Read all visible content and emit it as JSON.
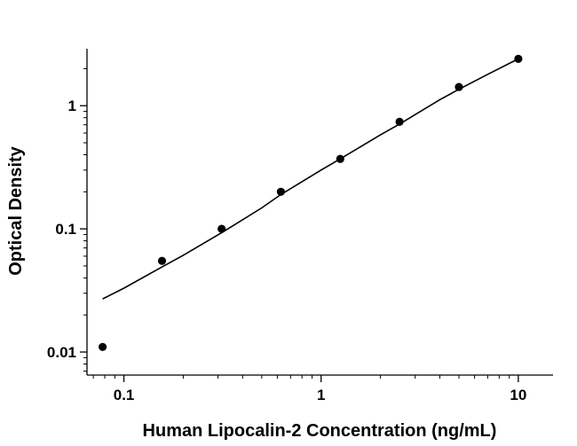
{
  "chart_data": {
    "type": "scatter",
    "title": "",
    "xlabel": "Human Lipocalin-2 Concentration (ng/mL)",
    "ylabel": "Optical Density",
    "x_scale": "log",
    "y_scale": "log",
    "xlim": [
      0.065,
      15
    ],
    "ylim": [
      0.0065,
      2.9
    ],
    "grid": false,
    "legend": "none",
    "x_ticks": [
      {
        "value": 0.1,
        "label": "0.1"
      },
      {
        "value": 1,
        "label": "1"
      },
      {
        "value": 10,
        "label": "10"
      }
    ],
    "y_ticks": [
      {
        "value": 0.01,
        "label": "0.01"
      },
      {
        "value": 0.1,
        "label": "0.1"
      },
      {
        "value": 1,
        "label": "1"
      }
    ],
    "series": [
      {
        "type": "scatter",
        "x": [
          0.078,
          0.156,
          0.313,
          0.625,
          1.25,
          2.5,
          5,
          10
        ],
        "y": [
          0.011,
          0.055,
          0.1,
          0.2,
          0.37,
          0.74,
          1.42,
          2.4
        ]
      },
      {
        "type": "line",
        "x": [
          0.078,
          0.1,
          0.156,
          0.2,
          0.313,
          0.5,
          0.625,
          1,
          1.25,
          2,
          2.5,
          4,
          5,
          7,
          10
        ],
        "y": [
          0.027,
          0.033,
          0.049,
          0.061,
          0.093,
          0.148,
          0.19,
          0.3,
          0.37,
          0.58,
          0.71,
          1.12,
          1.36,
          1.8,
          2.4
        ]
      }
    ],
    "colors": {
      "marker": "#000000",
      "line": "#000000",
      "axis": "#000000"
    }
  }
}
